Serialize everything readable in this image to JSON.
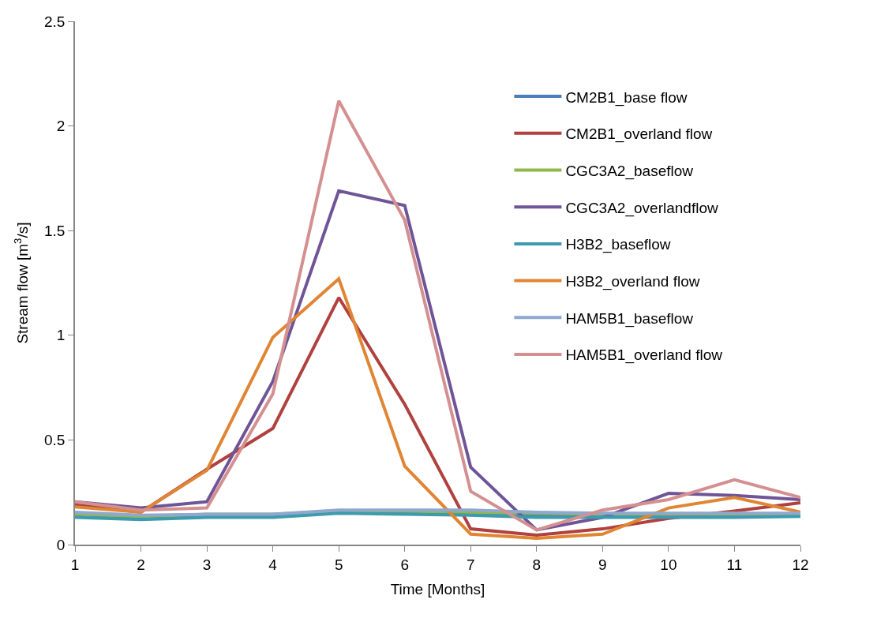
{
  "chart_data": {
    "type": "line",
    "xlabel": "Time [Months]",
    "ylabel": "Stream flow [m$^{3}$/s]",
    "x": [
      1,
      2,
      3,
      4,
      5,
      6,
      7,
      8,
      9,
      10,
      11,
      12
    ],
    "xlim": [
      1,
      12
    ],
    "xticks": [
      1,
      2,
      3,
      4,
      5,
      6,
      7,
      8,
      9,
      10,
      11,
      12
    ],
    "ylim": [
      0,
      2.5
    ],
    "yticks": [
      0,
      0.5,
      1,
      1.5,
      2,
      2.5
    ],
    "legend": "top right",
    "marker": "none",
    "line_style": "solid",
    "series": [
      {
        "name": "CM2B1_base flow",
        "color": "#4a7ebb",
        "values": [
          0.14,
          0.13,
          0.14,
          0.14,
          0.155,
          0.15,
          0.15,
          0.14,
          0.14,
          0.14,
          0.14,
          0.14
        ]
      },
      {
        "name": "CM2B1_overland flow",
        "color": "#b0413e",
        "values": [
          0.19,
          0.155,
          0.36,
          0.555,
          1.18,
          0.67,
          0.075,
          0.045,
          0.075,
          0.125,
          0.16,
          0.2
        ]
      },
      {
        "name": "CGC3A2_baseflow",
        "color": "#8fb84b",
        "values": [
          0.145,
          0.135,
          0.145,
          0.145,
          0.16,
          0.16,
          0.155,
          0.15,
          0.145,
          0.145,
          0.145,
          0.145
        ]
      },
      {
        "name": "CGC3A2_overlandflow",
        "color": "#6f5597",
        "values": [
          0.205,
          0.175,
          0.205,
          0.78,
          1.69,
          1.62,
          0.37,
          0.07,
          0.13,
          0.245,
          0.235,
          0.215
        ]
      },
      {
        "name": "H3B2_baseflow",
        "color": "#3d9bb0",
        "values": [
          0.13,
          0.12,
          0.13,
          0.13,
          0.15,
          0.145,
          0.14,
          0.13,
          0.13,
          0.13,
          0.13,
          0.135
        ]
      },
      {
        "name": "H3B2_overland flow",
        "color": "#e08534",
        "values": [
          0.18,
          0.155,
          0.355,
          0.99,
          1.27,
          0.375,
          0.05,
          0.03,
          0.05,
          0.175,
          0.225,
          0.155
        ]
      },
      {
        "name": "HAM5B1_baseflow",
        "color": "#8ea8d0",
        "values": [
          0.155,
          0.14,
          0.145,
          0.145,
          0.165,
          0.165,
          0.165,
          0.155,
          0.15,
          0.15,
          0.15,
          0.15
        ]
      },
      {
        "name": "HAM5B1_overland flow",
        "color": "#d49090",
        "values": [
          0.205,
          0.165,
          0.175,
          0.72,
          2.12,
          1.55,
          0.255,
          0.07,
          0.165,
          0.215,
          0.31,
          0.225
        ]
      }
    ]
  }
}
